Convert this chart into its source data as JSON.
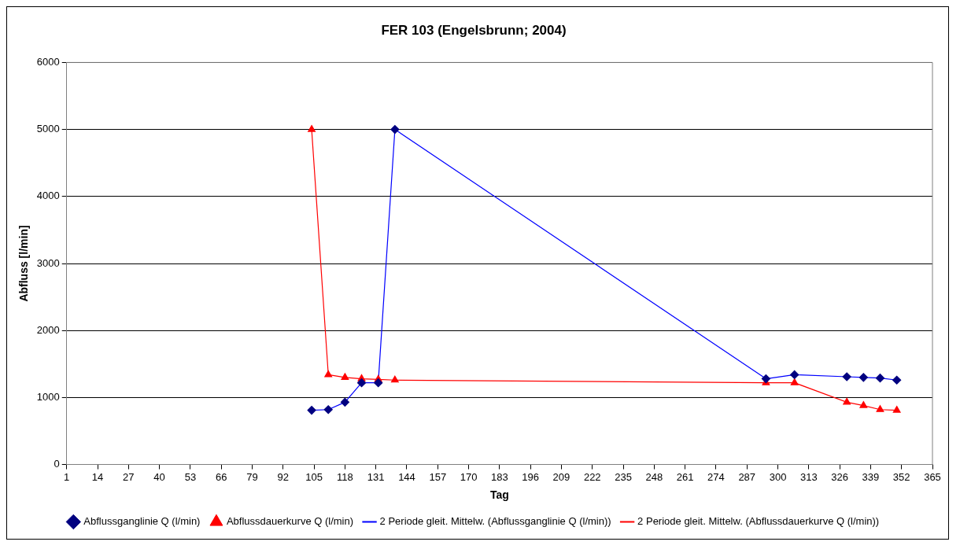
{
  "chart_data": {
    "type": "line",
    "title": "FER 103 (Engelsbrunn; 2004)",
    "xlabel": "Tag",
    "ylabel": "Abfluss [l/min]",
    "x": [
      104,
      111,
      118,
      125,
      132,
      139,
      295,
      307,
      329,
      336,
      343,
      350
    ],
    "series": [
      {
        "name": "Abflussganglinie Q (l/min)",
        "type": "scatter",
        "marker": "diamond",
        "color": "#000080",
        "values": [
          810,
          820,
          930,
          1220,
          1220,
          5000,
          1280,
          1340,
          1310,
          1300,
          1290,
          1260
        ]
      },
      {
        "name": "Abflussdauerkurve Q (l/min)",
        "type": "scatter",
        "marker": "triangle",
        "color": "#ff0000",
        "values": [
          5000,
          1340,
          1300,
          1280,
          1270,
          1260,
          1220,
          1220,
          930,
          880,
          820,
          810
        ]
      },
      {
        "name": "2 Periode gleit. Mittelw. (Abflussganglinie Q (l/min))",
        "type": "line",
        "marker": "none",
        "color": "#0000ff",
        "values": [
          810,
          820,
          930,
          1220,
          1220,
          5000,
          1280,
          1340,
          1310,
          1300,
          1290,
          1260
        ]
      },
      {
        "name": "2 Periode gleit. Mittelw. (Abflussdauerkurve Q (l/min))",
        "type": "line",
        "marker": "none",
        "color": "#ff0000",
        "values": [
          5000,
          1340,
          1300,
          1280,
          1270,
          1260,
          1220,
          1220,
          930,
          880,
          820,
          810
        ]
      }
    ],
    "xlim": [
      1,
      365
    ],
    "xticks": [
      1,
      14,
      27,
      40,
      53,
      66,
      79,
      92,
      105,
      118,
      131,
      144,
      157,
      170,
      183,
      196,
      209,
      222,
      235,
      248,
      261,
      274,
      287,
      300,
      313,
      326,
      339,
      352,
      365
    ],
    "ylim": [
      0,
      6000
    ],
    "yticks": [
      0,
      1000,
      2000,
      3000,
      4000,
      5000,
      6000
    ],
    "grid": "y",
    "legend": "bottom"
  }
}
